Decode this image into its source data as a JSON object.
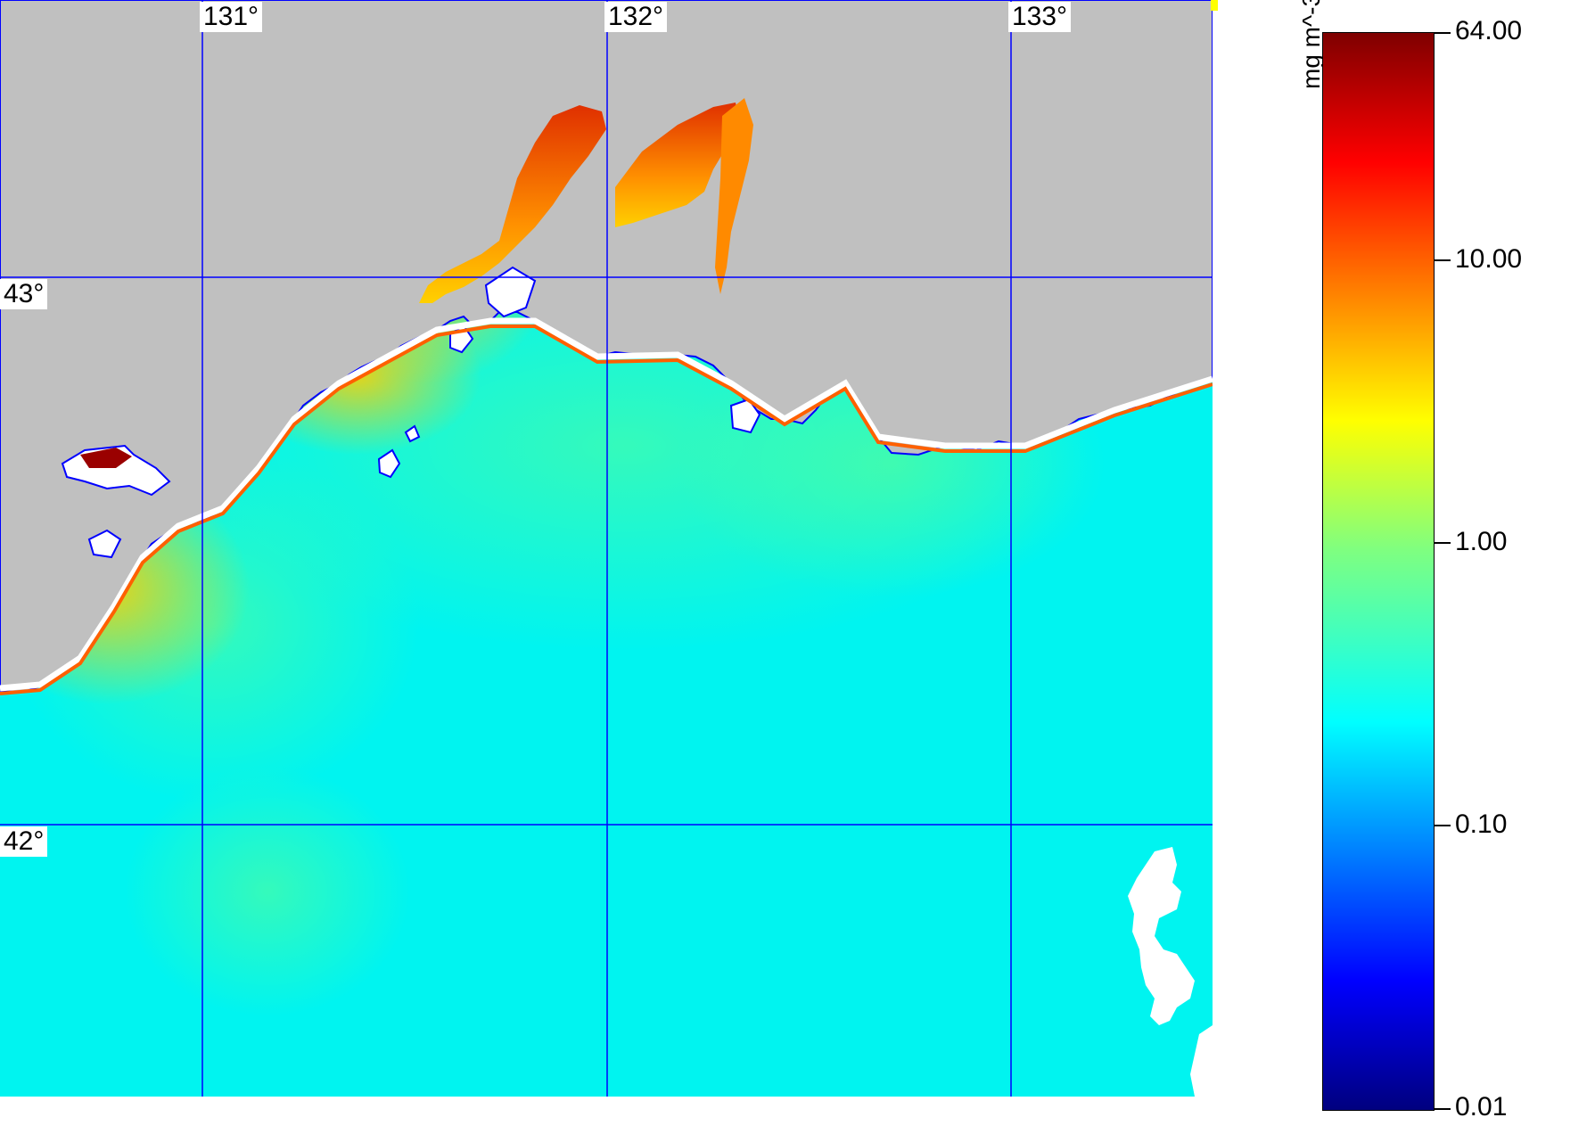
{
  "map": {
    "longitude_labels": [
      "131°",
      "132°",
      "133°"
    ],
    "latitude_labels": [
      "43°",
      "42°"
    ],
    "colors": {
      "land": "#c0c0c0",
      "ocean_low": "#00ffff",
      "ocean_mid": "#7fff80",
      "coast_high": "#ff8000",
      "coast_max": "#a00000",
      "no_data": "#ffffff",
      "graticule": "#0000ff",
      "coastline": "#0000ff"
    }
  },
  "colorbar": {
    "units": "mg m^-3",
    "ticks": [
      "64.00",
      "10.00",
      "1.00",
      "0.10",
      "0.01"
    ],
    "scale": "log",
    "gradient": [
      "#00007f",
      "#0000ff",
      "#0080ff",
      "#00ffff",
      "#7fff80",
      "#ffff00",
      "#ff8000",
      "#ff0000",
      "#7f0000"
    ]
  }
}
